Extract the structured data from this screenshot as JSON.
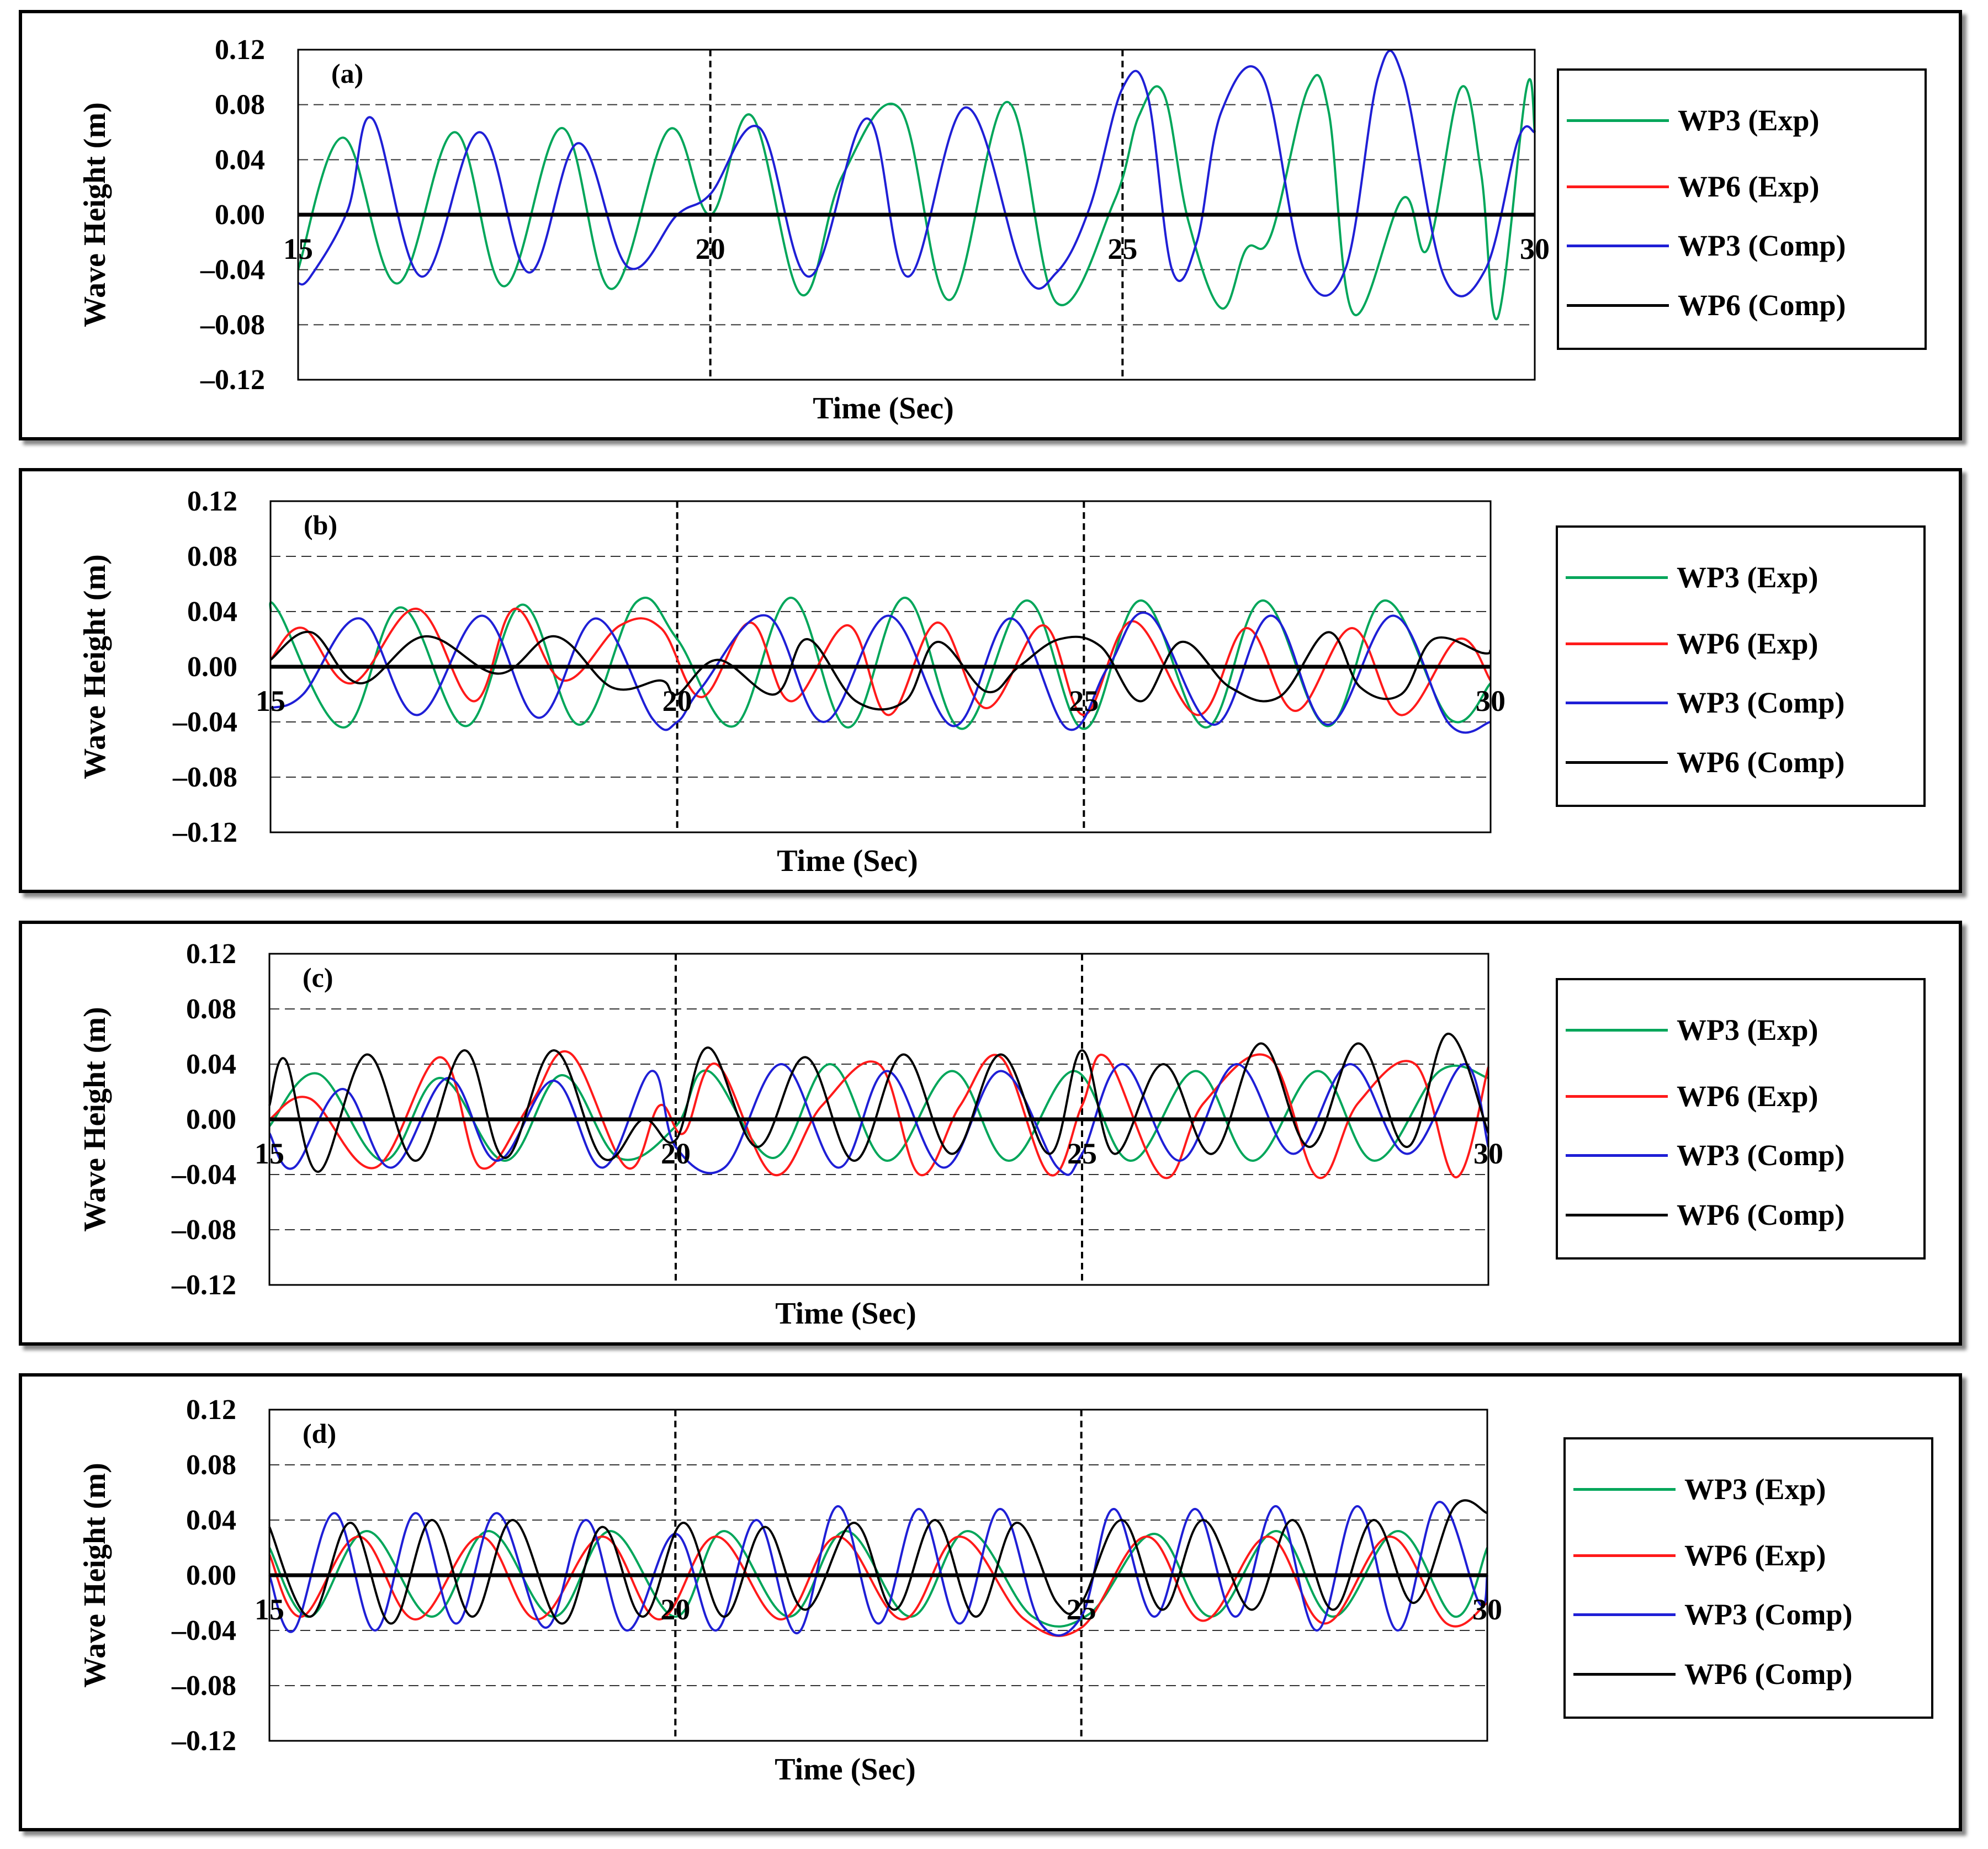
{
  "colors": {
    "wp3_exp": "#00a65a",
    "wp6_exp": "#ff1a1a",
    "wp3_comp": "#1f1fd6",
    "wp6_comp": "#000000"
  },
  "chart_data": [
    {
      "type": "line",
      "panel_label": "(a)",
      "xlabel": "Time (Sec)",
      "ylabel": "Wave Height (m)",
      "xlim": [
        15,
        30
      ],
      "ylim": [
        -0.12,
        0.12
      ],
      "x_ticks": [
        "15",
        "20",
        "25",
        "30"
      ],
      "y_ticks": [
        "0.12",
        "0.08",
        "0.04",
        "0.00",
        "–0.04",
        "–0.08",
        "–0.12"
      ],
      "legend": [
        "WP3 (Exp)",
        "WP6 (Exp)",
        "WP3 (Comp)",
        "WP6 (Comp)"
      ],
      "series": [
        {
          "name": "WP3 (Exp)",
          "key": "wp3_exp",
          "x": [
            15.0,
            15.55,
            16.2,
            16.9,
            17.5,
            18.2,
            18.8,
            19.5,
            20.0,
            20.5,
            21.1,
            21.6,
            22.3,
            22.9,
            23.6,
            24.2,
            24.9,
            25.2,
            25.5,
            25.8,
            26.2,
            26.5,
            26.8,
            27.25,
            27.5,
            27.8,
            28.4,
            28.7,
            29.1,
            29.35,
            29.55,
            29.9,
            30.0
          ],
          "values": [
            -0.04,
            0.056,
            -0.05,
            0.06,
            -0.052,
            0.063,
            -0.054,
            0.062,
            0.0,
            0.072,
            -0.058,
            0.028,
            0.077,
            -0.062,
            0.082,
            -0.064,
            0.01,
            0.072,
            0.088,
            -0.005,
            -0.068,
            -0.025,
            -0.015,
            0.092,
            0.075,
            -0.072,
            0.012,
            -0.025,
            0.092,
            0.03,
            -0.075,
            0.092,
            0.06
          ]
        },
        {
          "name": "WP3 (Comp)",
          "key": "wp3_comp",
          "x": [
            15.0,
            15.15,
            15.6,
            15.9,
            16.5,
            17.2,
            17.8,
            18.4,
            19.0,
            19.6,
            20.0,
            20.6,
            21.2,
            21.9,
            22.4,
            23.1,
            23.8,
            24.2,
            24.6,
            25.0,
            25.3,
            25.6,
            25.9,
            26.2,
            26.7,
            27.2,
            27.7,
            28.1,
            28.4,
            28.9,
            29.4,
            29.8,
            30.0
          ],
          "values": [
            -0.05,
            -0.045,
            0.003,
            0.07,
            -0.045,
            0.06,
            -0.042,
            0.052,
            -0.038,
            0.0,
            0.015,
            0.063,
            -0.045,
            0.07,
            -0.045,
            0.078,
            -0.042,
            -0.042,
            0.005,
            0.092,
            0.088,
            -0.04,
            -0.02,
            0.075,
            0.1,
            -0.04,
            -0.04,
            0.1,
            0.1,
            -0.045,
            -0.04,
            0.055,
            0.06
          ]
        }
      ]
    },
    {
      "type": "line",
      "panel_label": "(b)",
      "xlabel": "Time (Sec)",
      "ylabel": "Wave Height (m)",
      "xlim": [
        15,
        30
      ],
      "ylim": [
        -0.12,
        0.12
      ],
      "x_ticks": [
        "15",
        "20",
        "25",
        "30"
      ],
      "y_ticks": [
        "0.12",
        "0.08",
        "0.04",
        "0.00",
        "–0.04",
        "–0.08",
        "–0.12"
      ],
      "legend": [
        "WP3 (Exp)",
        "WP6 (Exp)",
        "WP3 (Comp)",
        "WP6 (Comp)"
      ],
      "series": [
        {
          "name": "WP3 (Exp)",
          "key": "wp3_exp",
          "x": [
            15.0,
            15.1,
            15.9,
            16.6,
            17.4,
            18.1,
            18.8,
            19.5,
            20.0,
            20.7,
            21.4,
            22.1,
            22.8,
            23.5,
            24.3,
            25.0,
            25.7,
            26.5,
            27.2,
            28.0,
            28.7,
            29.5,
            30.0
          ],
          "values": [
            0.04,
            0.04,
            -0.044,
            0.043,
            -0.043,
            0.045,
            -0.042,
            0.047,
            0.02,
            -0.043,
            0.05,
            -0.044,
            0.05,
            -0.045,
            0.048,
            -0.045,
            0.048,
            -0.044,
            0.048,
            -0.043,
            0.048,
            -0.038,
            -0.012
          ]
        },
        {
          "name": "WP6 (Exp)",
          "key": "wp6_exp",
          "x": [
            15.0,
            15.4,
            16.0,
            16.8,
            17.5,
            18.0,
            18.6,
            19.3,
            19.8,
            20.3,
            20.9,
            21.4,
            22.1,
            22.6,
            23.2,
            23.8,
            24.5,
            25.0,
            25.6,
            26.4,
            27.0,
            27.6,
            28.3,
            28.9,
            29.6,
            30.0
          ],
          "values": [
            0.005,
            0.028,
            -0.012,
            0.042,
            -0.025,
            0.042,
            -0.01,
            0.03,
            0.028,
            -0.022,
            0.032,
            -0.025,
            0.03,
            -0.035,
            0.032,
            -0.03,
            0.03,
            -0.035,
            0.033,
            -0.035,
            0.028,
            -0.032,
            0.028,
            -0.035,
            0.02,
            -0.01
          ]
        },
        {
          "name": "WP3 (Comp)",
          "key": "wp3_comp",
          "x": [
            15.0,
            15.4,
            16.1,
            16.8,
            17.6,
            18.3,
            19.0,
            19.7,
            20.0,
            20.3,
            21.1,
            21.8,
            22.6,
            23.4,
            24.1,
            24.8,
            25.3,
            25.8,
            26.6,
            27.3,
            28.0,
            28.8,
            29.5,
            30.0
          ],
          "values": [
            -0.03,
            -0.02,
            0.035,
            -0.035,
            0.037,
            -0.037,
            0.035,
            -0.038,
            -0.04,
            -0.015,
            0.037,
            -0.04,
            0.037,
            -0.043,
            0.035,
            -0.045,
            0.0,
            0.038,
            -0.042,
            0.037,
            -0.042,
            0.037,
            -0.042,
            -0.04
          ]
        },
        {
          "name": "WP6 (Comp)",
          "key": "wp6_comp",
          "x": [
            15.0,
            15.5,
            16.1,
            16.9,
            17.8,
            18.5,
            19.2,
            19.8,
            20.0,
            20.5,
            21.2,
            21.6,
            22.2,
            22.8,
            23.2,
            23.8,
            24.2,
            24.7,
            25.2,
            25.7,
            26.2,
            26.8,
            27.4,
            28.0,
            28.4,
            28.9,
            29.3,
            29.9,
            30.0
          ],
          "values": [
            0.005,
            0.025,
            -0.012,
            0.022,
            -0.005,
            0.022,
            -0.015,
            -0.01,
            -0.02,
            0.005,
            -0.02,
            0.02,
            -0.025,
            -0.025,
            0.018,
            -0.018,
            0.0,
            0.02,
            0.015,
            -0.025,
            0.018,
            -0.015,
            -0.022,
            0.025,
            -0.015,
            -0.02,
            0.02,
            0.01,
            0.012
          ]
        }
      ]
    },
    {
      "type": "line",
      "panel_label": "(c)",
      "xlabel": "Time (Sec)",
      "ylabel": "Wave Height (m)",
      "xlim": [
        15,
        30
      ],
      "ylim": [
        -0.12,
        0.12
      ],
      "x_ticks": [
        "15",
        "20",
        "25",
        "30"
      ],
      "y_ticks": [
        "0.12",
        "0.08",
        "0.04",
        "0.00",
        "–0.04",
        "–0.08",
        "–0.12"
      ],
      "legend": [
        "WP3 (Exp)",
        "WP6 (Exp)",
        "WP3 (Comp)",
        "WP6 (Comp)"
      ],
      "series": [
        {
          "name": "WP3 (Exp)",
          "key": "wp3_exp",
          "x": [
            15.0,
            15.6,
            16.4,
            17.1,
            17.9,
            18.6,
            19.3,
            20.0,
            20.4,
            21.2,
            21.9,
            22.6,
            23.4,
            24.1,
            24.9,
            25.6,
            26.4,
            27.1,
            27.9,
            28.6,
            29.4,
            30.0
          ],
          "values": [
            -0.005,
            0.033,
            -0.03,
            0.03,
            -0.03,
            0.032,
            -0.028,
            -0.005,
            0.035,
            -0.028,
            0.04,
            -0.03,
            0.035,
            -0.03,
            0.035,
            -0.03,
            0.035,
            -0.03,
            0.035,
            -0.03,
            0.035,
            0.03
          ]
        },
        {
          "name": "WP6 (Exp)",
          "key": "wp6_exp",
          "x": [
            15.0,
            15.5,
            16.3,
            17.1,
            17.6,
            18.2,
            18.7,
            19.4,
            19.8,
            20.1,
            20.5,
            21.2,
            21.8,
            22.5,
            23.0,
            23.5,
            24.0,
            24.6,
            25.0,
            25.3,
            26.0,
            26.5,
            27.3,
            27.9,
            28.4,
            29.1,
            29.6,
            30.0
          ],
          "values": [
            0.0,
            0.015,
            -0.035,
            0.045,
            -0.035,
            0.01,
            0.048,
            -0.035,
            0.01,
            -0.01,
            0.04,
            -0.04,
            0.01,
            0.04,
            -0.04,
            0.01,
            0.045,
            -0.04,
            0.01,
            0.045,
            -0.042,
            0.012,
            0.045,
            -0.042,
            0.012,
            0.04,
            -0.042,
            0.038
          ]
        },
        {
          "name": "WP3 (Comp)",
          "key": "wp3_comp",
          "x": [
            15.0,
            15.3,
            15.9,
            16.5,
            17.2,
            17.8,
            18.5,
            19.1,
            19.7,
            20.0,
            20.6,
            21.3,
            22.0,
            22.6,
            23.3,
            24.0,
            24.7,
            25.0,
            25.5,
            26.2,
            26.9,
            27.6,
            28.3,
            29.0,
            29.7,
            30.0
          ],
          "values": [
            -0.01,
            -0.035,
            0.022,
            -0.035,
            0.03,
            -0.03,
            0.028,
            -0.035,
            0.035,
            -0.02,
            -0.035,
            0.04,
            -0.035,
            0.035,
            -0.035,
            0.035,
            -0.035,
            -0.025,
            0.04,
            -0.03,
            0.04,
            -0.025,
            0.04,
            -0.025,
            0.04,
            -0.02
          ]
        },
        {
          "name": "WP6 (Comp)",
          "key": "wp6_comp",
          "x": [
            15.0,
            15.2,
            15.6,
            16.2,
            16.8,
            17.4,
            17.9,
            18.5,
            19.1,
            19.6,
            20.0,
            20.4,
            21.0,
            21.6,
            22.2,
            22.8,
            23.4,
            24.0,
            24.6,
            25.0,
            25.4,
            26.0,
            26.6,
            27.2,
            27.8,
            28.4,
            29.0,
            29.5,
            30.0
          ],
          "values": [
            0.01,
            0.043,
            -0.038,
            0.047,
            -0.03,
            0.05,
            -0.028,
            0.05,
            -0.028,
            0.0,
            -0.015,
            0.052,
            -0.02,
            0.045,
            -0.03,
            0.047,
            -0.025,
            0.047,
            -0.025,
            0.05,
            -0.025,
            0.04,
            -0.025,
            0.055,
            -0.02,
            0.055,
            -0.02,
            0.062,
            -0.01
          ]
        }
      ]
    },
    {
      "type": "line",
      "panel_label": "(d)",
      "xlabel": "Time (Sec)",
      "ylabel": "Wave Height (m)",
      "xlim": [
        15,
        30
      ],
      "ylim": [
        -0.12,
        0.12
      ],
      "x_ticks": [
        "15",
        "20",
        "25",
        "30"
      ],
      "y_ticks": [
        "0.12",
        "0.08",
        "0.04",
        "0.00",
        "–0.04",
        "–0.08",
        "–0.12"
      ],
      "legend": [
        "WP3 (Exp)",
        "WP6 (Exp)",
        "WP3 (Comp)",
        "WP6 (Comp)"
      ],
      "series": [
        {
          "name": "WP3 (Exp)",
          "key": "wp3_exp",
          "x": [
            15.0,
            15.5,
            16.2,
            17.0,
            17.7,
            18.5,
            19.2,
            20.0,
            20.6,
            21.4,
            22.1,
            22.9,
            23.6,
            24.4,
            25.1,
            25.9,
            26.6,
            27.4,
            28.1,
            28.9,
            29.6,
            30.0
          ],
          "values": [
            0.02,
            -0.03,
            0.032,
            -0.03,
            0.032,
            -0.03,
            0.032,
            -0.03,
            0.032,
            -0.03,
            0.032,
            -0.03,
            0.032,
            -0.03,
            -0.028,
            0.03,
            -0.03,
            0.032,
            -0.03,
            0.032,
            -0.03,
            0.02
          ]
        },
        {
          "name": "WP6 (Exp)",
          "key": "wp6_exp",
          "x": [
            15.0,
            15.4,
            16.1,
            16.8,
            17.6,
            18.3,
            19.1,
            19.8,
            20.5,
            21.3,
            22.0,
            22.8,
            23.5,
            24.3,
            25.0,
            25.8,
            26.5,
            27.3,
            28.0,
            28.8,
            29.5,
            30.0
          ],
          "values": [
            0.015,
            -0.03,
            0.028,
            -0.032,
            0.028,
            -0.032,
            0.028,
            -0.032,
            0.028,
            -0.032,
            0.028,
            -0.032,
            0.028,
            -0.032,
            -0.038,
            0.028,
            -0.033,
            0.028,
            -0.035,
            0.028,
            -0.035,
            -0.02
          ]
        },
        {
          "name": "WP3 (Comp)",
          "key": "wp3_comp",
          "x": [
            15.0,
            15.3,
            15.8,
            16.3,
            16.8,
            17.3,
            17.8,
            18.4,
            18.9,
            19.4,
            20.0,
            20.5,
            21.0,
            21.5,
            22.0,
            22.5,
            23.0,
            23.5,
            24.0,
            24.5,
            25.0,
            25.4,
            25.9,
            26.4,
            26.9,
            27.4,
            27.9,
            28.4,
            28.9,
            29.4,
            29.9,
            30.0
          ],
          "values": [
            0.0,
            -0.04,
            0.045,
            -0.04,
            0.045,
            -0.035,
            0.045,
            -0.038,
            0.04,
            -0.04,
            0.03,
            -0.04,
            0.04,
            -0.042,
            0.05,
            -0.035,
            0.048,
            -0.035,
            0.048,
            -0.035,
            -0.03,
            0.048,
            -0.03,
            0.048,
            -0.03,
            0.05,
            -0.04,
            0.05,
            -0.04,
            0.053,
            -0.02,
            0.0
          ]
        },
        {
          "name": "WP6 (Comp)",
          "key": "wp6_comp",
          "x": [
            15.0,
            15.5,
            16.0,
            16.5,
            17.0,
            17.5,
            18.0,
            18.6,
            19.1,
            19.6,
            20.1,
            20.6,
            21.1,
            21.6,
            22.2,
            22.7,
            23.2,
            23.7,
            24.2,
            24.7,
            25.0,
            25.5,
            26.0,
            26.5,
            27.1,
            27.6,
            28.1,
            28.6,
            29.1,
            29.6,
            30.0
          ],
          "values": [
            0.035,
            -0.03,
            0.038,
            -0.035,
            0.04,
            -0.03,
            0.04,
            -0.035,
            0.035,
            -0.03,
            0.038,
            -0.03,
            0.035,
            -0.025,
            0.038,
            -0.025,
            0.04,
            -0.03,
            0.038,
            -0.02,
            -0.02,
            0.04,
            -0.025,
            0.04,
            -0.025,
            0.04,
            -0.025,
            0.04,
            -0.02,
            0.05,
            0.045
          ]
        }
      ]
    }
  ]
}
